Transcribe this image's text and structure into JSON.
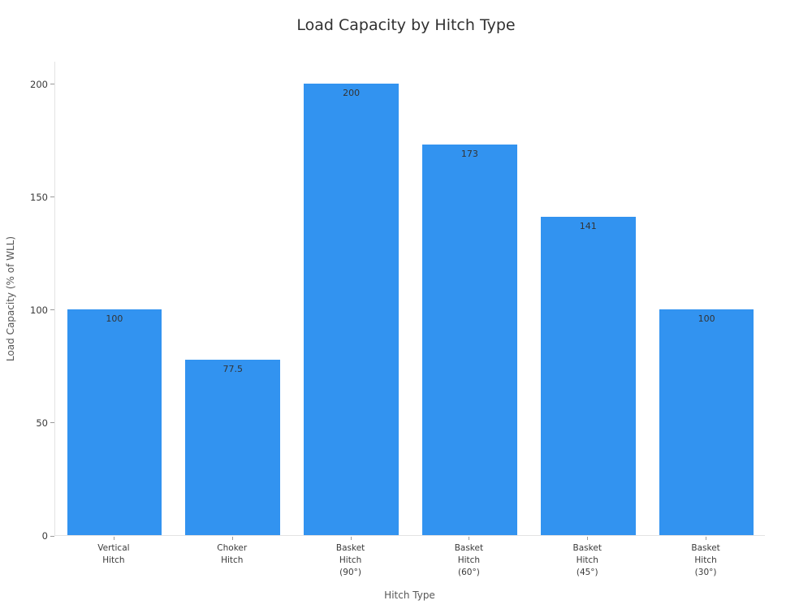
{
  "chart_data": {
    "type": "bar",
    "title": "Load Capacity by Hitch Type",
    "xlabel": "Hitch Type",
    "ylabel": "Load Capacity (% of WLL)",
    "categories": [
      "Vertical\nHitch",
      "Choker\nHitch",
      "Basket\nHitch\n(90°)",
      "Basket\nHitch\n(60°)",
      "Basket\nHitch\n(45°)",
      "Basket\nHitch\n(30°)"
    ],
    "values": [
      100,
      77.5,
      200,
      173,
      141,
      100
    ],
    "value_labels": [
      "100",
      "77.5",
      "200",
      "173",
      "141",
      "100"
    ],
    "yticks": [
      0,
      50,
      100,
      150,
      200
    ],
    "ylim": [
      0,
      210
    ],
    "bar_color": "#3293f0",
    "grid": false,
    "legend": null,
    "colors": {
      "bar": "#3293f0",
      "axis_line": "#e3e3e3",
      "tick_mark": "#999999",
      "tick_text": "#3a3a3a",
      "axis_title_text": "#575757",
      "title_text": "#313131",
      "bar_label_text": "#333333",
      "background": "#ffffff"
    }
  }
}
